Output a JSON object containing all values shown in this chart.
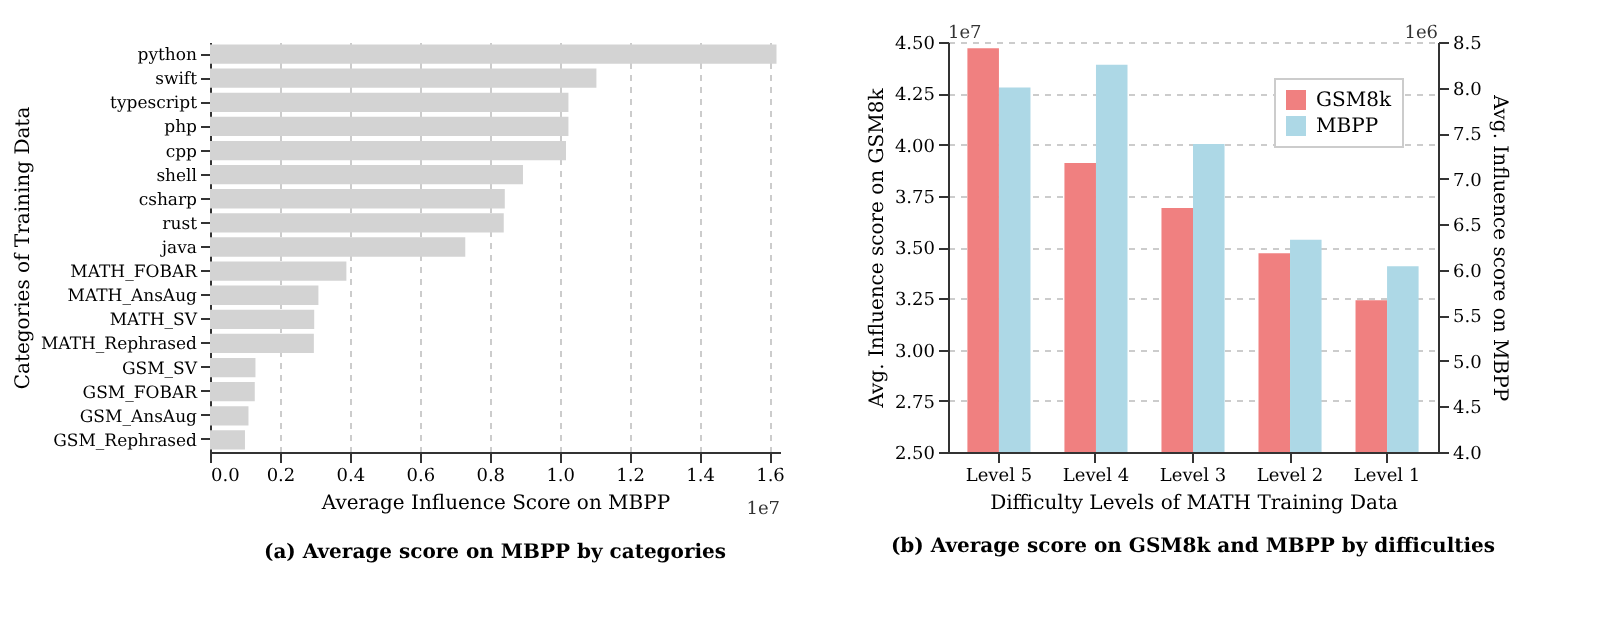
{
  "chart_data": [
    {
      "type": "bar",
      "orientation": "horizontal",
      "title": "(a) Average score on MBPP by categories",
      "xlabel": "Average Influence Score on MBPP",
      "ylabel": "Categories of Training Data",
      "categories": [
        "python",
        "swift",
        "typescript",
        "php",
        "cpp",
        "shell",
        "csharp",
        "rust",
        "java",
        "MATH_FOBAR",
        "MATH_AnsAug",
        "MATH_SV",
        "MATH_Rephrased",
        "GSM_SV",
        "GSM_FOBAR",
        "GSM_AnsAug",
        "GSM_Rephrased"
      ],
      "values": [
        1.62,
        1.105,
        1.025,
        1.025,
        1.018,
        0.895,
        0.843,
        0.84,
        0.73,
        0.39,
        0.31,
        0.298,
        0.297,
        0.13,
        0.128,
        0.11,
        0.1
      ],
      "color": "#d3d3d3",
      "xlim": [
        0,
        1.63
      ],
      "xticks": [
        {
          "value": 0,
          "label": "0.0"
        },
        0.2,
        0.4,
        0.6,
        0.8,
        {
          "value": 1,
          "label": "1.0"
        },
        1.2,
        1.4,
        1.6
      ],
      "grid": "x",
      "annotations": [
        "1e7"
      ]
    },
    {
      "type": "bar",
      "title": "(b) Average score on GSM8k and MBPP by difficulties",
      "xlabel": "Difficulty Levels of MATH Training Data",
      "ylabel": "Avg. Influence score on GSM8k",
      "y2label": "Avg. Influence score on MBPP",
      "categories": [
        "Level 5",
        "Level 4",
        "Level 3",
        "Level 2",
        "Level 1"
      ],
      "series": [
        {
          "name": "GSM8k",
          "color": "#f08080",
          "values": [
            4.47,
            3.91,
            3.69,
            3.47,
            3.24
          ]
        },
        {
          "name": "MBPP",
          "color": "#add8e6",
          "axis": "y2",
          "values": [
            8.0,
            8.25,
            7.38,
            6.33,
            6.04
          ]
        }
      ],
      "ylim": [
        2.5,
        4.5
      ],
      "yticks": [
        {
          "value": 2.5,
          "label": "2.50"
        },
        2.75,
        {
          "value": 3,
          "label": "3.00"
        },
        3.25,
        {
          "value": 3.5,
          "label": "3.50"
        },
        3.75,
        {
          "value": 4,
          "label": "4.00"
        },
        4.25,
        {
          "value": 4.5,
          "label": "4.50"
        }
      ],
      "y2lim": [
        4.0,
        8.5
      ],
      "y2ticks": [
        {
          "value": 4,
          "label": "4.0"
        },
        4.5,
        {
          "value": 5,
          "label": "5.0"
        },
        5.5,
        {
          "value": 6,
          "label": "6.0"
        },
        6.5,
        {
          "value": 7,
          "label": "7.0"
        },
        7.5,
        {
          "value": 8,
          "label": "8.0"
        },
        8.5
      ],
      "grid": "y",
      "legend": "top right",
      "annotations": [
        "1e7",
        "1e6"
      ]
    }
  ]
}
